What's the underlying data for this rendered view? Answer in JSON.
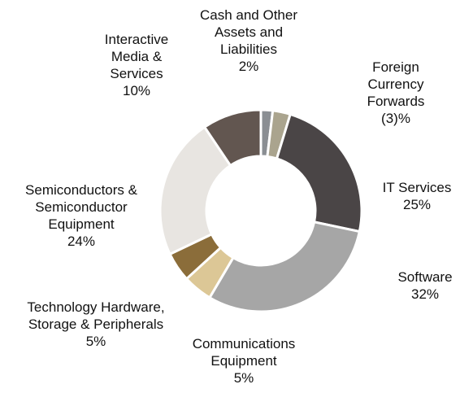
{
  "chart_data": {
    "type": "donut",
    "categories": [
      "Cash and Other\nAssets and\nLiabilities",
      "Foreign\nCurrency\nForwards",
      "IT Services",
      "Software",
      "Communications\nEquipment",
      "Technology Hardware,\nStorage & Peripherals",
      "Semiconductors &\nSemiconductor\nEquipment",
      "Interactive\nMedia &\nServices"
    ],
    "values": [
      2,
      -3,
      25,
      32,
      5,
      5,
      24,
      10
    ],
    "value_labels": [
      "2%",
      "(3)%",
      "25%",
      "32%",
      "5%",
      "5%",
      "24%",
      "10%"
    ],
    "colors": [
      "#8a8e93",
      "#aaa48e",
      "#4a4546",
      "#a6a6a6",
      "#dcc796",
      "#8b6d3a",
      "#e8e5e1",
      "#625650"
    ]
  }
}
